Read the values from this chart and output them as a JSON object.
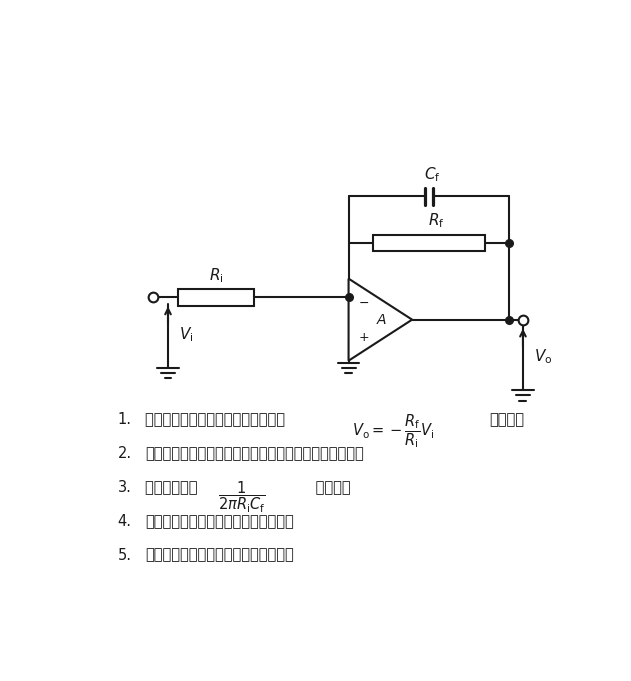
{
  "bg_color": "#ffffff",
  "line_color": "#1a1a1a",
  "text_color": "#1a1a1a",
  "items": {
    "list_items": [
      [
        "1.",
        "過断周波数より十分に低い帯域では ",
        "$V_{\\mathrm{o}} = -\\dfrac{R_{\\mathrm{f}}}{R_{\\mathrm{i}}}V_{\\mathrm{i}}$",
        " である。"
      ],
      [
        "2.",
        "過断周波数より十分に高い帯域では微分特性を有する。",
        "",
        ""
      ],
      [
        "3.",
        "過断周波数は ",
        "$\\dfrac{1}{2\\pi R_{\\mathrm{i}} C_{\\mathrm{f}}}$",
        " である。"
      ],
      [
        "4.",
        "入力インピーダンスは無限大である。",
        "",
        ""
      ],
      [
        "5.",
        "出力インピーダンスは無限大である。",
        "",
        ""
      ]
    ]
  }
}
